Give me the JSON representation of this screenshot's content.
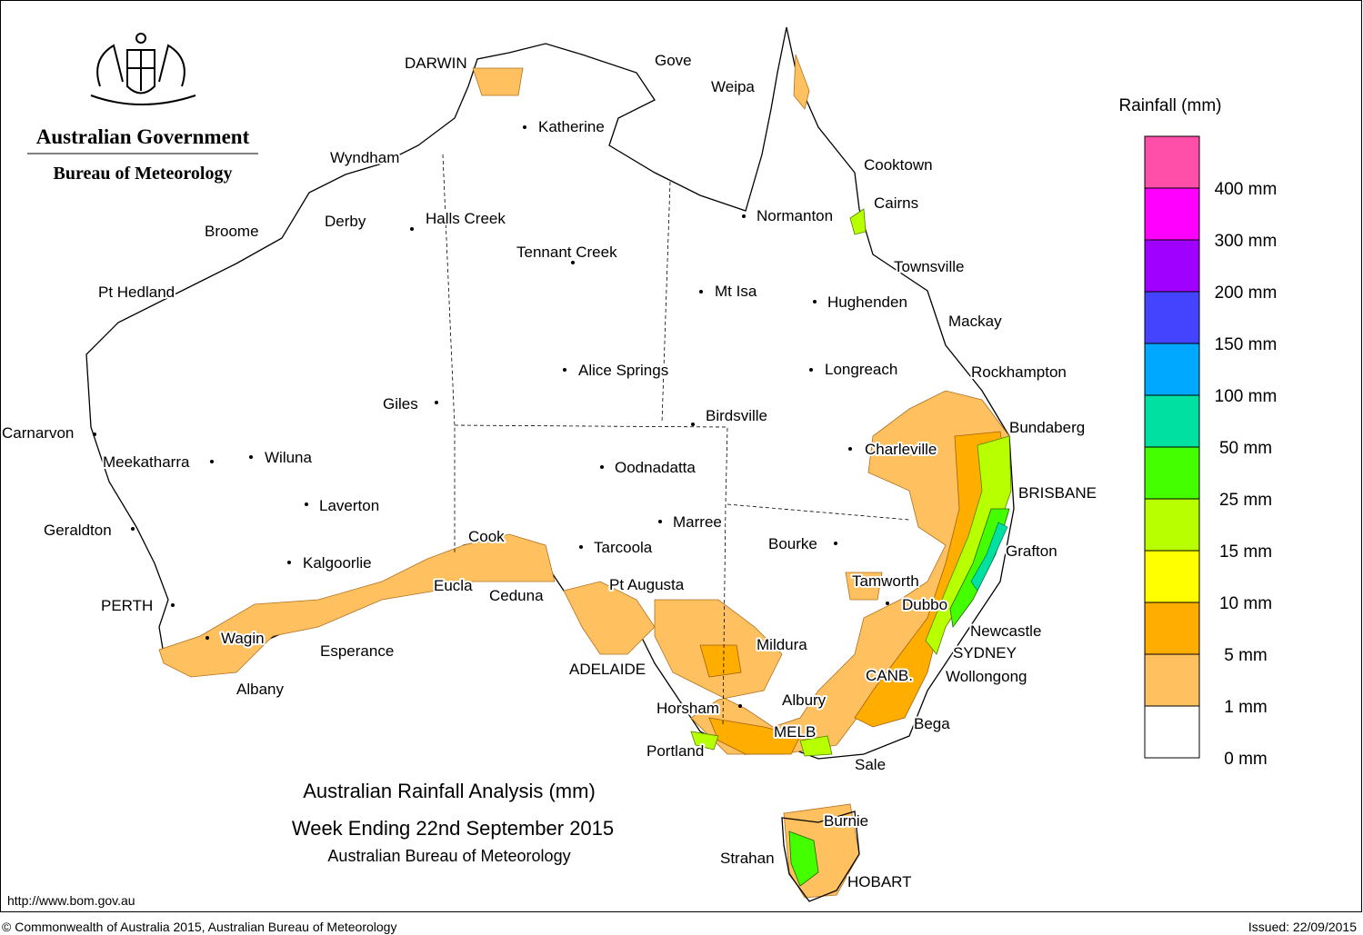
{
  "header": {
    "government": "Australian Government",
    "bureau": "Bureau of Meteorology"
  },
  "title": {
    "line1": "Australian Rainfall Analysis (mm)",
    "line2": "Week Ending 22nd September 2015",
    "line3": "Australian Bureau of Meteorology"
  },
  "legend": {
    "title": "Rainfall (mm)",
    "colors": [
      "#ff4fa8",
      "#ff00ff",
      "#a000ff",
      "#4444ff",
      "#00a8ff",
      "#00e0a0",
      "#44ff00",
      "#b8ff00",
      "#ffff00",
      "#ffae00",
      "#ffc060",
      "#ffffff"
    ],
    "labels": [
      "400 mm",
      "300 mm",
      "200 mm",
      "150 mm",
      "100 mm",
      "50 mm",
      "25 mm",
      "15 mm",
      "10 mm",
      "5 mm",
      "1 mm",
      "0 mm"
    ]
  },
  "places": [
    {
      "label": "DARWIN"
    },
    {
      "label": "Gove"
    },
    {
      "label": "Weipa"
    },
    {
      "label": "Katherine"
    },
    {
      "label": "Wyndham"
    },
    {
      "label": "Derby"
    },
    {
      "label": "Halls Creek"
    },
    {
      "label": "Broome"
    },
    {
      "label": "Tennant Creek"
    },
    {
      "label": "Normanton"
    },
    {
      "label": "Cooktown"
    },
    {
      "label": "Cairns"
    },
    {
      "label": "Townsville"
    },
    {
      "label": "Pt Hedland"
    },
    {
      "label": "Mt Isa"
    },
    {
      "label": "Hughenden"
    },
    {
      "label": "Mackay"
    },
    {
      "label": "Alice Springs"
    },
    {
      "label": "Longreach"
    },
    {
      "label": "Rockhampton"
    },
    {
      "label": "Giles"
    },
    {
      "label": "Birdsville"
    },
    {
      "label": "Bundaberg"
    },
    {
      "label": "Carnarvon"
    },
    {
      "label": "Charleville"
    },
    {
      "label": "Meekatharra"
    },
    {
      "label": "Wiluna"
    },
    {
      "label": "Oodnadatta"
    },
    {
      "label": "BRISBANE"
    },
    {
      "label": "Laverton"
    },
    {
      "label": "Marree"
    },
    {
      "label": "Geraldton"
    },
    {
      "label": "Cook"
    },
    {
      "label": "Bourke"
    },
    {
      "label": "Tarcoola"
    },
    {
      "label": "Grafton"
    },
    {
      "label": "Kalgoorlie"
    },
    {
      "label": "Tamworth"
    },
    {
      "label": "Eucla"
    },
    {
      "label": "Pt Augusta"
    },
    {
      "label": "Ceduna"
    },
    {
      "label": "PERTH"
    },
    {
      "label": "Dubbo"
    },
    {
      "label": "Newcastle"
    },
    {
      "label": "Wagin"
    },
    {
      "label": "Mildura"
    },
    {
      "label": "Esperance"
    },
    {
      "label": "SYDNEY"
    },
    {
      "label": "ADELAIDE"
    },
    {
      "label": "CANB."
    },
    {
      "label": "Wollongong"
    },
    {
      "label": "Albany"
    },
    {
      "label": "Albury"
    },
    {
      "label": "Horsham"
    },
    {
      "label": "Bega"
    },
    {
      "label": "MELB"
    },
    {
      "label": "Portland"
    },
    {
      "label": "Sale"
    },
    {
      "label": "Burnie"
    },
    {
      "label": "Strahan"
    },
    {
      "label": "HOBART"
    }
  ],
  "footer": {
    "url": "http://www.bom.gov.au",
    "copyright": "© Commonwealth of Australia 2015, Australian Bureau of Meteorology",
    "issued": "Issued: 22/09/2015"
  }
}
